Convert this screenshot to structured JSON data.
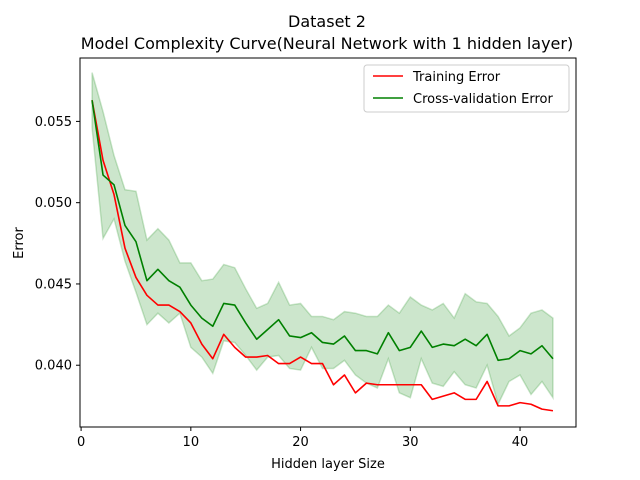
{
  "chart_data": {
    "type": "line",
    "title_line1": "Dataset 2",
    "title_line2": "Model Complexity Curve(Neural Network with 1 hidden layer)",
    "xlabel": "Hidden layer Size",
    "ylabel": "Error",
    "xlim": [
      -0.1,
      45.1
    ],
    "ylim": [
      0.0362,
      0.0589
    ],
    "xticks": [
      0,
      10,
      20,
      30,
      40
    ],
    "yticks": [
      0.04,
      0.045,
      0.05,
      0.055
    ],
    "ytick_labels": [
      "0.040",
      "0.045",
      "0.050",
      "0.055"
    ],
    "legend_position": "top-right",
    "x": [
      1,
      2,
      3,
      4,
      5,
      6,
      7,
      8,
      9,
      10,
      11,
      12,
      13,
      14,
      15,
      16,
      17,
      18,
      19,
      20,
      21,
      22,
      23,
      24,
      25,
      26,
      27,
      28,
      29,
      30,
      31,
      32,
      33,
      34,
      35,
      36,
      37,
      38,
      39,
      40,
      41,
      42,
      43
    ],
    "series": [
      {
        "name": "Training Error",
        "color": "#ff0000",
        "values": [
          0.0563,
          0.0526,
          0.0505,
          0.0472,
          0.0454,
          0.0443,
          0.0437,
          0.0437,
          0.0433,
          0.0426,
          0.0413,
          0.0404,
          0.0419,
          0.0411,
          0.0405,
          0.0405,
          0.0406,
          0.0401,
          0.0401,
          0.0405,
          0.0401,
          0.0401,
          0.0388,
          0.0394,
          0.0383,
          0.0389,
          0.0388,
          0.0388,
          0.0388,
          0.0388,
          0.0388,
          0.0379,
          0.0381,
          0.0383,
          0.0379,
          0.0379,
          0.039,
          0.0375,
          0.0375,
          0.0377,
          0.0376,
          0.0373,
          0.0372
        ]
      },
      {
        "name": "Cross-validation Error",
        "color": "#008000",
        "values": [
          0.0563,
          0.0517,
          0.0511,
          0.0486,
          0.0476,
          0.0452,
          0.0459,
          0.0452,
          0.0448,
          0.0437,
          0.0429,
          0.0424,
          0.0438,
          0.0437,
          0.0426,
          0.0416,
          0.0422,
          0.0428,
          0.0418,
          0.0417,
          0.042,
          0.0414,
          0.0413,
          0.0418,
          0.0409,
          0.0409,
          0.0407,
          0.042,
          0.0409,
          0.0411,
          0.0421,
          0.0411,
          0.0413,
          0.0412,
          0.0416,
          0.0412,
          0.0419,
          0.0403,
          0.0404,
          0.0409,
          0.0407,
          0.0412,
          0.0404
        ]
      }
    ],
    "band": {
      "color": "#008000",
      "upper": [
        0.058,
        0.0556,
        0.0529,
        0.0508,
        0.0507,
        0.0477,
        0.0484,
        0.0477,
        0.0463,
        0.0463,
        0.0452,
        0.0453,
        0.0462,
        0.046,
        0.0447,
        0.0435,
        0.0438,
        0.0451,
        0.0437,
        0.0438,
        0.043,
        0.043,
        0.0428,
        0.0433,
        0.0432,
        0.043,
        0.043,
        0.0437,
        0.0432,
        0.0442,
        0.0437,
        0.0434,
        0.0438,
        0.0429,
        0.0444,
        0.0439,
        0.0438,
        0.043,
        0.0418,
        0.0423,
        0.0432,
        0.0434,
        0.0429
      ],
      "lower": [
        0.0546,
        0.0478,
        0.049,
        0.0464,
        0.0445,
        0.0425,
        0.0432,
        0.0426,
        0.0432,
        0.0411,
        0.0405,
        0.0395,
        0.0415,
        0.0414,
        0.0406,
        0.0397,
        0.0405,
        0.0406,
        0.0398,
        0.0397,
        0.0411,
        0.0398,
        0.0398,
        0.0403,
        0.0394,
        0.0389,
        0.0386,
        0.0404,
        0.0383,
        0.038,
        0.0404,
        0.0389,
        0.0387,
        0.0396,
        0.0388,
        0.0386,
        0.04,
        0.0376,
        0.039,
        0.0394,
        0.0382,
        0.039,
        0.038
      ]
    }
  }
}
